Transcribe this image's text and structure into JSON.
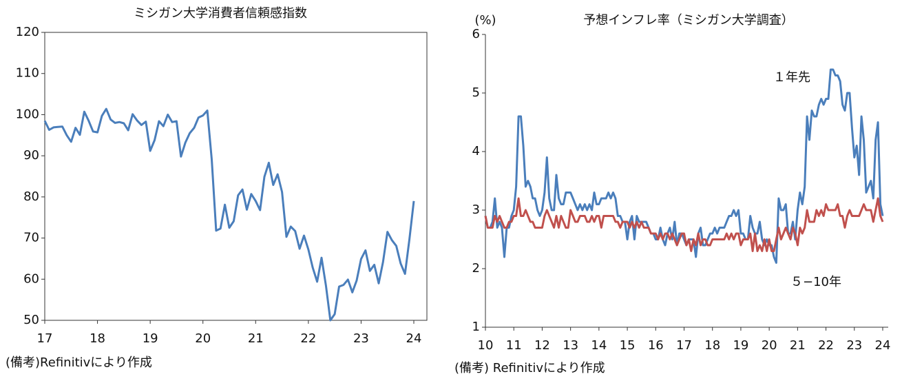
{
  "chart_data": [
    {
      "type": "line",
      "title": "ミシガン大学消費者信頼感指数",
      "note": "(備考)Refinitivにより作成",
      "categories": [
        "17",
        null,
        null,
        null,
        null,
        null,
        null,
        null,
        null,
        null,
        null,
        null,
        "18",
        null,
        null,
        null,
        null,
        null,
        null,
        null,
        null,
        null,
        null,
        null,
        "19",
        null,
        null,
        null,
        null,
        null,
        null,
        null,
        null,
        null,
        null,
        null,
        "20",
        null,
        null,
        null,
        null,
        null,
        null,
        null,
        null,
        null,
        null,
        null,
        "21",
        null,
        null,
        null,
        null,
        null,
        null,
        null,
        null,
        null,
        null,
        null,
        "22",
        null,
        null,
        null,
        null,
        null,
        null,
        null,
        null,
        null,
        null,
        null,
        "23",
        null,
        null,
        null,
        null,
        null,
        null,
        null,
        null,
        null,
        null,
        null,
        "24"
      ],
      "values": [
        98.5,
        96.3,
        96.9,
        97.0,
        97.1,
        95.0,
        93.4,
        96.8,
        95.1,
        100.7,
        98.5,
        95.9,
        95.7,
        99.7,
        101.4,
        98.8,
        98.0,
        98.2,
        97.9,
        96.2,
        100.1,
        98.6,
        97.5,
        98.3,
        91.2,
        93.8,
        98.4,
        97.2,
        100.0,
        98.2,
        98.4,
        89.8,
        93.2,
        95.5,
        96.8,
        99.3,
        99.8,
        101.0,
        89.1,
        71.8,
        72.3,
        78.1,
        72.5,
        74.1,
        80.4,
        81.8,
        76.9,
        80.7,
        79.0,
        76.8,
        84.9,
        88.3,
        82.9,
        85.5,
        81.2,
        70.3,
        72.8,
        71.7,
        67.4,
        70.6,
        67.2,
        62.8,
        59.4,
        65.2,
        58.4,
        50.0,
        51.5,
        58.2,
        58.6,
        59.9,
        56.8,
        59.7,
        64.9,
        67.0,
        62.0,
        63.5,
        59.0,
        64.2,
        71.5,
        69.5,
        68.1,
        63.8,
        61.3,
        69.7,
        79.0
      ],
      "color": "#4a7ebb",
      "ylim": [
        50,
        120
      ],
      "yticks": [
        50,
        60,
        70,
        80,
        90,
        100,
        110,
        120
      ],
      "frame": true
    },
    {
      "type": "line",
      "title": "予想インフレ率（ミシガン大学調査）",
      "y_label": "(%)",
      "note": "(備考) Refinitivにより作成",
      "categories": [
        "10",
        null,
        null,
        null,
        null,
        null,
        null,
        null,
        null,
        null,
        null,
        null,
        "11",
        null,
        null,
        null,
        null,
        null,
        null,
        null,
        null,
        null,
        null,
        null,
        "12",
        null,
        null,
        null,
        null,
        null,
        null,
        null,
        null,
        null,
        null,
        null,
        "13",
        null,
        null,
        null,
        null,
        null,
        null,
        null,
        null,
        null,
        null,
        null,
        "14",
        null,
        null,
        null,
        null,
        null,
        null,
        null,
        null,
        null,
        null,
        null,
        "15",
        null,
        null,
        null,
        null,
        null,
        null,
        null,
        null,
        null,
        null,
        null,
        "16",
        null,
        null,
        null,
        null,
        null,
        null,
        null,
        null,
        null,
        null,
        null,
        "17",
        null,
        null,
        null,
        null,
        null,
        null,
        null,
        null,
        null,
        null,
        null,
        "18",
        null,
        null,
        null,
        null,
        null,
        null,
        null,
        null,
        null,
        null,
        null,
        "19",
        null,
        null,
        null,
        null,
        null,
        null,
        null,
        null,
        null,
        null,
        null,
        "20",
        null,
        null,
        null,
        null,
        null,
        null,
        null,
        null,
        null,
        null,
        null,
        "21",
        null,
        null,
        null,
        null,
        null,
        null,
        null,
        null,
        null,
        null,
        null,
        "22",
        null,
        null,
        null,
        null,
        null,
        null,
        null,
        null,
        null,
        null,
        null,
        "23",
        null,
        null,
        null,
        null,
        null,
        null,
        null,
        null,
        null,
        null,
        null,
        "24"
      ],
      "series": [
        {
          "name": "１年先",
          "color": "#4a7ebb",
          "values": [
            2.9,
            2.7,
            2.7,
            2.8,
            3.2,
            2.7,
            2.8,
            2.7,
            2.2,
            2.7,
            2.7,
            2.9,
            3.0,
            3.4,
            4.6,
            4.6,
            4.1,
            3.4,
            3.5,
            3.4,
            3.2,
            3.2,
            3.0,
            2.9,
            3.0,
            3.3,
            3.9,
            3.2,
            3.0,
            3.0,
            3.6,
            3.2,
            3.1,
            3.1,
            3.3,
            3.3,
            3.3,
            3.2,
            3.1,
            3.0,
            3.1,
            3.0,
            3.1,
            3.0,
            3.1,
            3.0,
            3.3,
            3.1,
            3.1,
            3.2,
            3.2,
            3.2,
            3.3,
            3.2,
            3.3,
            3.2,
            2.9,
            2.9,
            2.8,
            2.8,
            2.5,
            2.8,
            2.9,
            2.5,
            2.9,
            2.8,
            2.8,
            2.8,
            2.8,
            2.7,
            2.6,
            2.6,
            2.5,
            2.5,
            2.7,
            2.5,
            2.4,
            2.6,
            2.7,
            2.5,
            2.8,
            2.4,
            2.6,
            2.6,
            2.5,
            2.4,
            2.5,
            2.5,
            2.5,
            2.2,
            2.6,
            2.7,
            2.4,
            2.4,
            2.5,
            2.6,
            2.6,
            2.7,
            2.6,
            2.7,
            2.7,
            2.7,
            2.8,
            2.9,
            2.9,
            3.0,
            2.9,
            3.0,
            2.6,
            2.6,
            2.5,
            2.5,
            2.9,
            2.7,
            2.6,
            2.6,
            2.8,
            2.5,
            2.4,
            2.5,
            2.4,
            2.4,
            2.2,
            2.1,
            3.2,
            3.0,
            3.0,
            3.1,
            2.6,
            2.6,
            2.8,
            2.5,
            3.0,
            3.3,
            3.1,
            3.4,
            4.6,
            4.2,
            4.7,
            4.6,
            4.6,
            4.8,
            4.9,
            4.8,
            4.9,
            4.9,
            5.4,
            5.4,
            5.3,
            5.3,
            5.2,
            4.8,
            4.7,
            5.0,
            5.0,
            4.4,
            3.9,
            4.1,
            3.6,
            4.6,
            4.2,
            3.3,
            3.4,
            3.5,
            3.2,
            4.2,
            4.5,
            3.1,
            2.9
          ]
        },
        {
          "name": "５−10年",
          "color": "#c0504d",
          "values": [
            2.9,
            2.7,
            2.7,
            2.7,
            2.9,
            2.8,
            2.9,
            2.8,
            2.7,
            2.7,
            2.8,
            2.8,
            2.9,
            2.9,
            3.2,
            2.9,
            2.9,
            3.0,
            2.9,
            2.8,
            2.8,
            2.7,
            2.7,
            2.7,
            2.7,
            2.9,
            3.0,
            2.9,
            2.8,
            2.7,
            2.9,
            2.7,
            2.9,
            2.8,
            2.7,
            2.7,
            3.0,
            2.9,
            2.8,
            2.8,
            2.9,
            2.9,
            2.9,
            2.8,
            2.8,
            2.9,
            2.8,
            2.9,
            2.9,
            2.7,
            2.9,
            2.9,
            2.9,
            2.9,
            2.9,
            2.8,
            2.8,
            2.7,
            2.8,
            2.8,
            2.8,
            2.7,
            2.8,
            2.7,
            2.8,
            2.7,
            2.8,
            2.7,
            2.7,
            2.7,
            2.6,
            2.6,
            2.6,
            2.5,
            2.6,
            2.5,
            2.6,
            2.6,
            2.5,
            2.6,
            2.5,
            2.4,
            2.5,
            2.6,
            2.6,
            2.4,
            2.5,
            2.3,
            2.5,
            2.4,
            2.6,
            2.4,
            2.5,
            2.5,
            2.4,
            2.4,
            2.5,
            2.5,
            2.5,
            2.5,
            2.5,
            2.5,
            2.6,
            2.5,
            2.6,
            2.5,
            2.6,
            2.6,
            2.4,
            2.5,
            2.5,
            2.5,
            2.6,
            2.3,
            2.6,
            2.3,
            2.4,
            2.3,
            2.5,
            2.3,
            2.5,
            2.3,
            2.3,
            2.5,
            2.7,
            2.5,
            2.6,
            2.7,
            2.6,
            2.5,
            2.7,
            2.6,
            2.4,
            2.7,
            2.6,
            2.7,
            3.0,
            2.8,
            2.8,
            2.8,
            3.0,
            2.9,
            3.0,
            2.9,
            3.1,
            3.0,
            3.0,
            3.0,
            3.0,
            3.1,
            2.9,
            2.9,
            2.7,
            2.9,
            3.0,
            2.9,
            2.9,
            2.9,
            2.9,
            3.0,
            3.1,
            3.0,
            3.0,
            3.0,
            2.8,
            3.0,
            3.2,
            2.9,
            2.8
          ]
        }
      ],
      "ylim": [
        1,
        6
      ],
      "yticks": [
        1,
        2,
        3,
        4,
        5,
        6
      ],
      "frame": false
    }
  ]
}
